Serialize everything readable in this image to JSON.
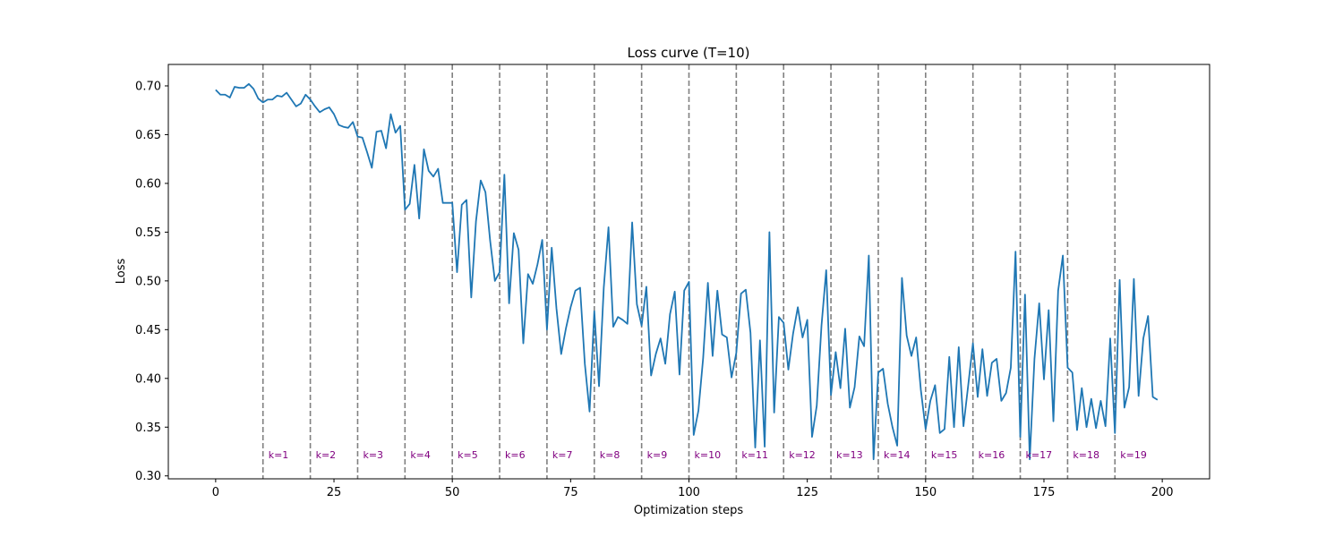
{
  "chart_data": {
    "type": "line",
    "title": "Loss curve (T=10)",
    "xlabel": "Optimization steps",
    "ylabel": "Loss",
    "xlim": [
      -10,
      210
    ],
    "ylim": [
      0.297,
      0.722
    ],
    "xticks": [
      0,
      25,
      50,
      75,
      100,
      125,
      150,
      175,
      200
    ],
    "yticks": [
      0.3,
      0.35,
      0.4,
      0.45,
      0.5,
      0.55,
      0.6,
      0.65,
      0.7
    ],
    "xtick_labels": [
      "0",
      "25",
      "50",
      "75",
      "100",
      "125",
      "150",
      "175",
      "200"
    ],
    "ytick_labels": [
      "0.30",
      "0.35",
      "0.40",
      "0.45",
      "0.50",
      "0.55",
      "0.60",
      "0.65",
      "0.70"
    ],
    "grid": false,
    "line_color": "#1f77b4",
    "vline_color": "#808080",
    "annotation_color": "#800080",
    "x": [
      0,
      1,
      2,
      3,
      4,
      5,
      6,
      7,
      8,
      9,
      10,
      11,
      12,
      13,
      14,
      15,
      16,
      17,
      18,
      19,
      20,
      21,
      22,
      23,
      24,
      25,
      26,
      27,
      28,
      29,
      30,
      31,
      32,
      33,
      34,
      35,
      36,
      37,
      38,
      39,
      40,
      41,
      42,
      43,
      44,
      45,
      46,
      47,
      48,
      49,
      50,
      51,
      52,
      53,
      54,
      55,
      56,
      57,
      58,
      59,
      60,
      61,
      62,
      63,
      64,
      65,
      66,
      67,
      68,
      69,
      70,
      71,
      72,
      73,
      74,
      75,
      76,
      77,
      78,
      79,
      80,
      81,
      82,
      83,
      84,
      85,
      86,
      87,
      88,
      89,
      90,
      91,
      92,
      93,
      94,
      95,
      96,
      97,
      98,
      99,
      100,
      101,
      102,
      103,
      104,
      105,
      106,
      107,
      108,
      109,
      110,
      111,
      112,
      113,
      114,
      115,
      116,
      117,
      118,
      119,
      120,
      121,
      122,
      123,
      124,
      125,
      126,
      127,
      128,
      129,
      130,
      131,
      132,
      133,
      134,
      135,
      136,
      137,
      138,
      139,
      140,
      141,
      142,
      143,
      144,
      145,
      146,
      147,
      148,
      149,
      150,
      151,
      152,
      153,
      154,
      155,
      156,
      157,
      158,
      159,
      160,
      161,
      162,
      163,
      164,
      165,
      166,
      167,
      168,
      169,
      170,
      171,
      172,
      173,
      174,
      175,
      176,
      177,
      178,
      179,
      180,
      181,
      182,
      183,
      184,
      185,
      186,
      187,
      188,
      189,
      190,
      191,
      192,
      193,
      194,
      195,
      196,
      197,
      198,
      199
    ],
    "y": [
      0.696,
      0.691,
      0.691,
      0.688,
      0.699,
      0.698,
      0.698,
      0.702,
      0.697,
      0.687,
      0.683,
      0.686,
      0.686,
      0.69,
      0.689,
      0.693,
      0.686,
      0.679,
      0.682,
      0.691,
      0.686,
      0.679,
      0.673,
      0.676,
      0.678,
      0.671,
      0.66,
      0.658,
      0.657,
      0.663,
      0.648,
      0.647,
      0.632,
      0.616,
      0.653,
      0.654,
      0.636,
      0.671,
      0.652,
      0.659,
      0.573,
      0.579,
      0.619,
      0.564,
      0.635,
      0.613,
      0.607,
      0.615,
      0.58,
      0.58,
      0.58,
      0.509,
      0.578,
      0.583,
      0.483,
      0.561,
      0.603,
      0.591,
      0.541,
      0.5,
      0.509,
      0.609,
      0.477,
      0.549,
      0.532,
      0.436,
      0.507,
      0.497,
      0.517,
      0.542,
      0.45,
      0.534,
      0.472,
      0.425,
      0.451,
      0.473,
      0.49,
      0.493,
      0.415,
      0.366,
      0.469,
      0.392,
      0.493,
      0.555,
      0.453,
      0.463,
      0.46,
      0.456,
      0.56,
      0.476,
      0.454,
      0.494,
      0.403,
      0.425,
      0.441,
      0.415,
      0.466,
      0.489,
      0.404,
      0.49,
      0.499,
      0.342,
      0.367,
      0.421,
      0.498,
      0.423,
      0.49,
      0.445,
      0.442,
      0.401,
      0.426,
      0.487,
      0.491,
      0.447,
      0.329,
      0.439,
      0.33,
      0.55,
      0.365,
      0.463,
      0.457,
      0.409,
      0.446,
      0.473,
      0.442,
      0.46,
      0.34,
      0.372,
      0.454,
      0.511,
      0.383,
      0.427,
      0.39,
      0.451,
      0.37,
      0.391,
      0.443,
      0.433,
      0.526,
      0.317,
      0.406,
      0.41,
      0.374,
      0.35,
      0.331,
      0.503,
      0.444,
      0.423,
      0.442,
      0.388,
      0.348,
      0.377,
      0.393,
      0.344,
      0.348,
      0.422,
      0.35,
      0.432,
      0.351,
      0.393,
      0.436,
      0.381,
      0.43,
      0.382,
      0.416,
      0.42,
      0.377,
      0.385,
      0.411,
      0.53,
      0.34,
      0.486,
      0.317,
      0.42,
      0.477,
      0.399,
      0.47,
      0.356,
      0.49,
      0.526,
      0.411,
      0.406,
      0.347,
      0.39,
      0.35,
      0.379,
      0.349,
      0.377,
      0.351,
      0.441,
      0.344,
      0.501,
      0.37,
      0.391,
      0.502,
      0.382,
      0.441,
      0.464,
      0.381,
      0.378
    ],
    "vlines": [
      10,
      20,
      30,
      40,
      50,
      60,
      70,
      80,
      90,
      100,
      110,
      120,
      130,
      140,
      150,
      160,
      170,
      180,
      190
    ],
    "annotations": [
      "k=1",
      "k=2",
      "k=3",
      "k=4",
      "k=5",
      "k=6",
      "k=7",
      "k=8",
      "k=9",
      "k=10",
      "k=11",
      "k=12",
      "k=13",
      "k=14",
      "k=15",
      "k=16",
      "k=17",
      "k=18",
      "k=19"
    ],
    "annotation_y": 0.322
  }
}
